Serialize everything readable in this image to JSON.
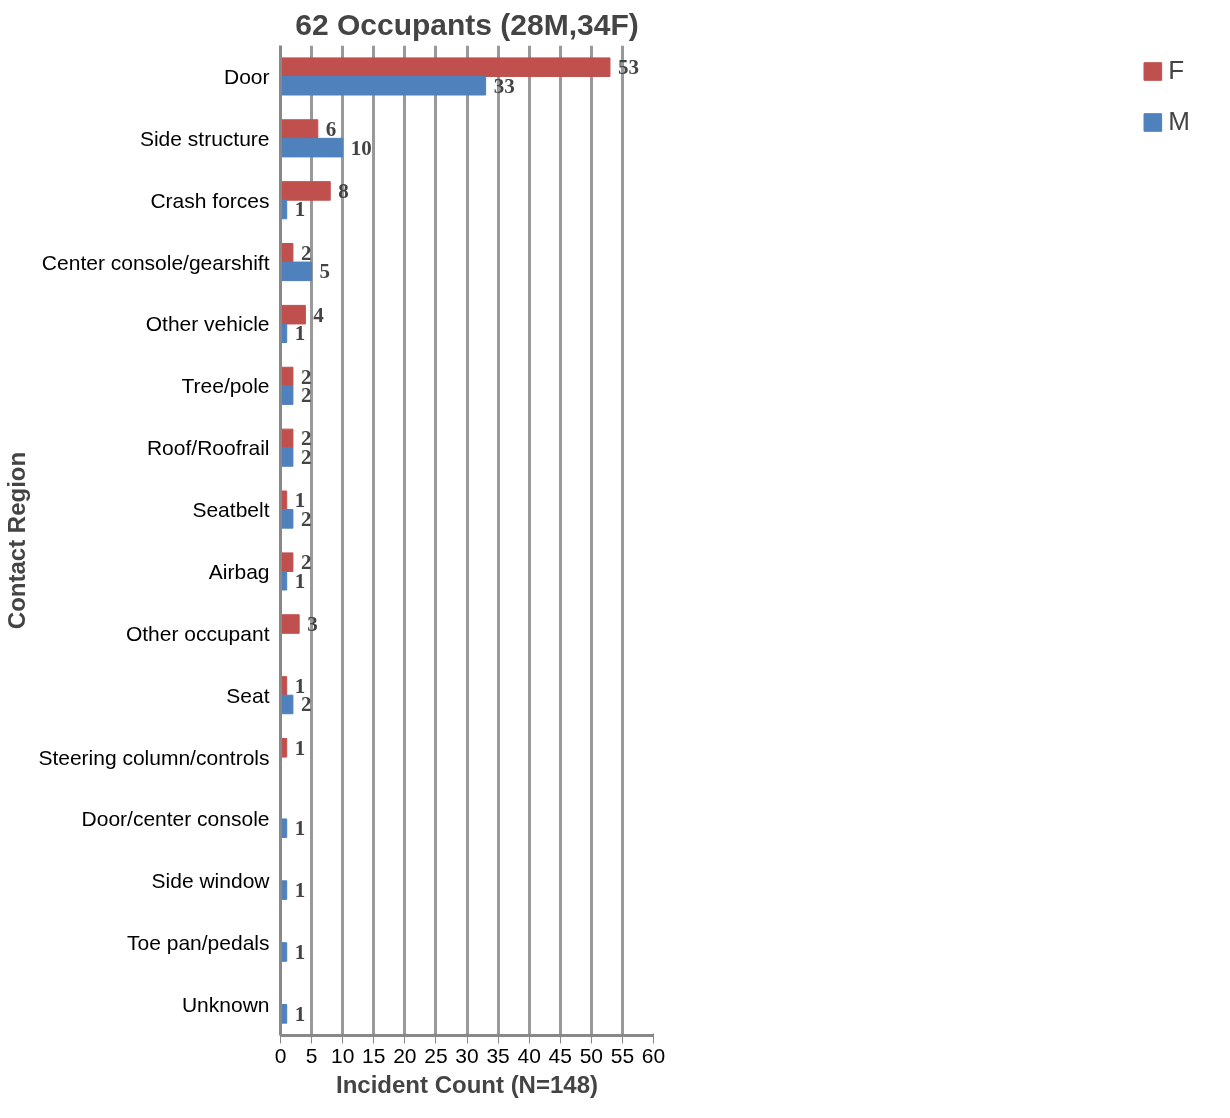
{
  "chart_data": {
    "type": "bar",
    "orientation": "horizontal",
    "title": "62 Occupants (28M,34F)",
    "xlabel": "Incident Count (N=148)",
    "ylabel": "Contact Region",
    "categories": [
      "Door",
      "Side structure",
      "Crash forces",
      "Center console/gearshift",
      "Other vehicle",
      "Tree/pole",
      "Roof/Roofrail",
      "Seatbelt",
      "Airbag",
      "Other occupant",
      "Seat",
      "Steering column/controls",
      "Door/center console",
      "Side window",
      "Toe pan/pedals",
      "Unknown"
    ],
    "series": [
      {
        "name": "F",
        "color": "#c0504d",
        "values": [
          53,
          6,
          8,
          2,
          4,
          2,
          2,
          1,
          2,
          3,
          1,
          1,
          null,
          null,
          null,
          null
        ]
      },
      {
        "name": "M",
        "color": "#4f81bd",
        "values": [
          33,
          10,
          1,
          5,
          1,
          2,
          2,
          2,
          1,
          null,
          2,
          null,
          1,
          1,
          1,
          1
        ]
      }
    ],
    "xlim": [
      0,
      60
    ],
    "xticks": [
      0,
      5,
      10,
      15,
      20,
      25,
      30,
      35,
      40,
      45,
      50,
      55,
      60
    ],
    "grid": "x",
    "legend": "right",
    "data_labels": true
  }
}
